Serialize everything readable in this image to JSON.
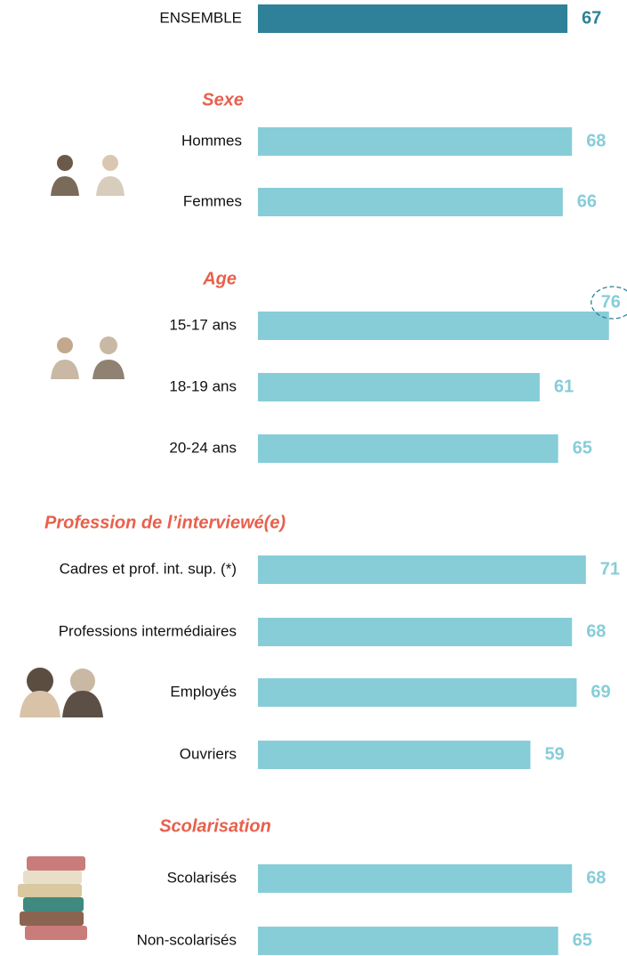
{
  "chart_data": [
    {
      "type": "bar",
      "categories": [
        "ENSEMBLE"
      ],
      "values": [
        67
      ],
      "color": "#2e8198"
    },
    {
      "type": "bar",
      "title": "Sexe",
      "categories": [
        "Hommes",
        "Femmes"
      ],
      "values": [
        68,
        66
      ],
      "color": "#87cdd8"
    },
    {
      "type": "bar",
      "title": "Age",
      "categories": [
        "15-17 ans",
        "18-19 ans",
        "20-24 ans"
      ],
      "values": [
        76,
        61,
        65
      ],
      "color": "#87cdd8"
    },
    {
      "type": "bar",
      "title": "Profession de l’interviewé(e)",
      "categories": [
        "Cadres et prof. int. sup. (*)",
        "Professions intermédiaires",
        "Employés",
        "Ouvriers"
      ],
      "values": [
        71,
        68,
        69,
        59
      ],
      "color": "#87cdd8"
    },
    {
      "type": "bar",
      "title": "Scolarisation",
      "categories": [
        "Scolarisés",
        "Non-scolarisés"
      ],
      "values": [
        68,
        65
      ],
      "color": "#87cdd8"
    }
  ]
}
